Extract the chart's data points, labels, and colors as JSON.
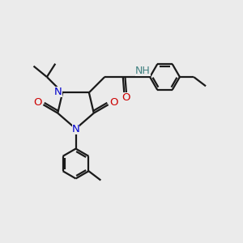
{
  "bg_color": "#ebebeb",
  "bond_color": "#1a1a1a",
  "bond_width": 1.6,
  "N_color": "#0000cc",
  "O_color": "#cc0000",
  "H_color": "#408080",
  "C_color": "#1a1a1a",
  "figsize": [
    3.0,
    3.0
  ],
  "dpi": 100,
  "xlim": [
    0,
    10
  ],
  "ylim": [
    0,
    10
  ]
}
